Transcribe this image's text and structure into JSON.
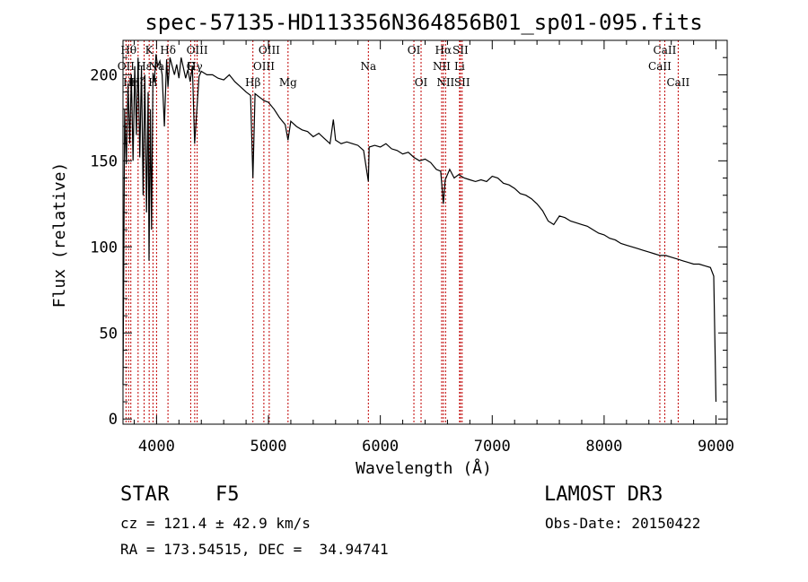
{
  "chart_data": {
    "type": "line",
    "title": "spec-57135-HD113356N364856B01_sp01-095.fits",
    "xlabel": "Wavelength (Å)",
    "ylabel": "Flux (relative)",
    "xlim": [
      3700,
      9100
    ],
    "ylim": [
      -3,
      220
    ],
    "x_ticks": [
      4000,
      5000,
      6000,
      7000,
      8000,
      9000
    ],
    "x_tick_labels": [
      "4000",
      "5000",
      "6000",
      "7000",
      "8000",
      "9000"
    ],
    "y_ticks": [
      0,
      50,
      100,
      150,
      200
    ],
    "y_tick_labels": [
      "0",
      "50",
      "100",
      "150",
      "200"
    ],
    "series": [
      {
        "name": "flux",
        "x": [
          3700,
          3715,
          3730,
          3745,
          3760,
          3775,
          3790,
          3805,
          3820,
          3835,
          3850,
          3865,
          3880,
          3895,
          3910,
          3925,
          3933,
          3945,
          3955,
          3968,
          3980,
          3995,
          4010,
          4030,
          4050,
          4070,
          4090,
          4102,
          4120,
          4140,
          4160,
          4180,
          4200,
          4220,
          4240,
          4260,
          4280,
          4300,
          4320,
          4340,
          4360,
          4380,
          4400,
          4450,
          4500,
          4550,
          4600,
          4650,
          4700,
          4750,
          4800,
          4840,
          4861,
          4880,
          4920,
          4960,
          5000,
          5050,
          5100,
          5150,
          5175,
          5200,
          5250,
          5300,
          5350,
          5400,
          5450,
          5500,
          5550,
          5580,
          5600,
          5650,
          5700,
          5750,
          5800,
          5850,
          5893,
          5900,
          5950,
          6000,
          6050,
          6100,
          6150,
          6200,
          6250,
          6300,
          6350,
          6400,
          6450,
          6500,
          6540,
          6563,
          6580,
          6620,
          6660,
          6700,
          6750,
          6800,
          6850,
          6900,
          6950,
          7000,
          7050,
          7100,
          7150,
          7200,
          7250,
          7300,
          7350,
          7400,
          7450,
          7500,
          7550,
          7600,
          7650,
          7700,
          7750,
          7800,
          7850,
          7900,
          7950,
          8000,
          8050,
          8100,
          8150,
          8200,
          8250,
          8300,
          8350,
          8400,
          8450,
          8500,
          8550,
          8600,
          8650,
          8700,
          8750,
          8800,
          8850,
          8900,
          8950,
          8980,
          9000
        ],
        "values": [
          20,
          180,
          148,
          195,
          160,
          200,
          150,
          205,
          165,
          210,
          152,
          205,
          130,
          200,
          120,
          190,
          92,
          180,
          110,
          201,
          196,
          212,
          205,
          208,
          200,
          170,
          209,
          193,
          210,
          205,
          200,
          206,
          198,
          210,
          204,
          198,
          203,
          196,
          205,
          160,
          180,
          199,
          202,
          200,
          200,
          198,
          197,
          200,
          196,
          193,
          190,
          188,
          140,
          189,
          187,
          185,
          184,
          180,
          175,
          171,
          162,
          173,
          170,
          168,
          167,
          164,
          166,
          163,
          160,
          174,
          162,
          160,
          161,
          160,
          159,
          156,
          138,
          158,
          159,
          158,
          160,
          157,
          156,
          154,
          155,
          152,
          150,
          151,
          149,
          145,
          144,
          125,
          139,
          145,
          140,
          142,
          140,
          139,
          138,
          139,
          138,
          141,
          140,
          137,
          136,
          134,
          131,
          130,
          128,
          125,
          121,
          115,
          113,
          118,
          117,
          115,
          114,
          113,
          112,
          110,
          108,
          107,
          105,
          104,
          102,
          101,
          100,
          99,
          98,
          97,
          96,
          95,
          95,
          94,
          93,
          92,
          91,
          90,
          90,
          89,
          88,
          83,
          10
        ]
      }
    ],
    "lines": [
      {
        "name": "OII",
        "wavelength": 3727,
        "label_row": 2
      },
      {
        "name": "Hθ",
        "wavelength": 3750,
        "label_row": 1
      },
      {
        "name": "Hη",
        "wavelength": 3770,
        "label_row": 3
      },
      {
        "name": "Hζ",
        "wavelength": 3835,
        "label_row": 3
      },
      {
        "name": "Hε",
        "wavelength": 3889,
        "label_row": 2
      },
      {
        "name": "K",
        "wavelength": 3934,
        "label_row": 1
      },
      {
        "name": "H",
        "wavelength": 3968,
        "label_row": 3
      },
      {
        "name": "Na",
        "wavelength": 4000,
        "label_row": 2
      },
      {
        "name": "Hδ",
        "wavelength": 4102,
        "label_row": 1
      },
      {
        "name": "G",
        "wavelength": 4305,
        "label_row": 2
      },
      {
        "name": "OIII",
        "wavelength": 4363,
        "label_row": 1
      },
      {
        "name": "Hγ",
        "wavelength": 4341,
        "label_row": 2
      },
      {
        "name": "Hβ",
        "wavelength": 4861,
        "label_row": 3
      },
      {
        "name": "OIII",
        "wavelength": 4959,
        "label_row": 2
      },
      {
        "name": "OIII",
        "wavelength": 5007,
        "label_row": 1
      },
      {
        "name": "Mg",
        "wavelength": 5175,
        "label_row": 3
      },
      {
        "name": "Na",
        "wavelength": 5893,
        "label_row": 2
      },
      {
        "name": "OI",
        "wavelength": 6300,
        "label_row": 1
      },
      {
        "name": "OI",
        "wavelength": 6364,
        "label_row": 3
      },
      {
        "name": "NII",
        "wavelength": 6548,
        "label_row": 2
      },
      {
        "name": "Hα",
        "wavelength": 6563,
        "label_row": 1
      },
      {
        "name": "NII",
        "wavelength": 6583,
        "label_row": 3
      },
      {
        "name": "Li",
        "wavelength": 6708,
        "label_row": 2
      },
      {
        "name": "SII",
        "wavelength": 6716,
        "label_row": 1
      },
      {
        "name": "SII",
        "wavelength": 6731,
        "label_row": 3
      },
      {
        "name": "CaII",
        "wavelength": 8498,
        "label_row": 2
      },
      {
        "name": "CaII",
        "wavelength": 8542,
        "label_row": 1
      },
      {
        "name": "CaII",
        "wavelength": 8662,
        "label_row": 3
      }
    ]
  },
  "info": {
    "class_label": "STAR",
    "subclass": "F5",
    "survey": "LAMOST DR3",
    "cz": "cz = 121.4 ± 42.9 km/s",
    "obs_date": "Obs-Date: 20150422",
    "coords": "RA = 173.54515, DEC =  34.94741"
  },
  "colors": {
    "spectrum": "#000000",
    "marker_line": "#c00000",
    "axes": "#000000",
    "background": "#ffffff"
  }
}
